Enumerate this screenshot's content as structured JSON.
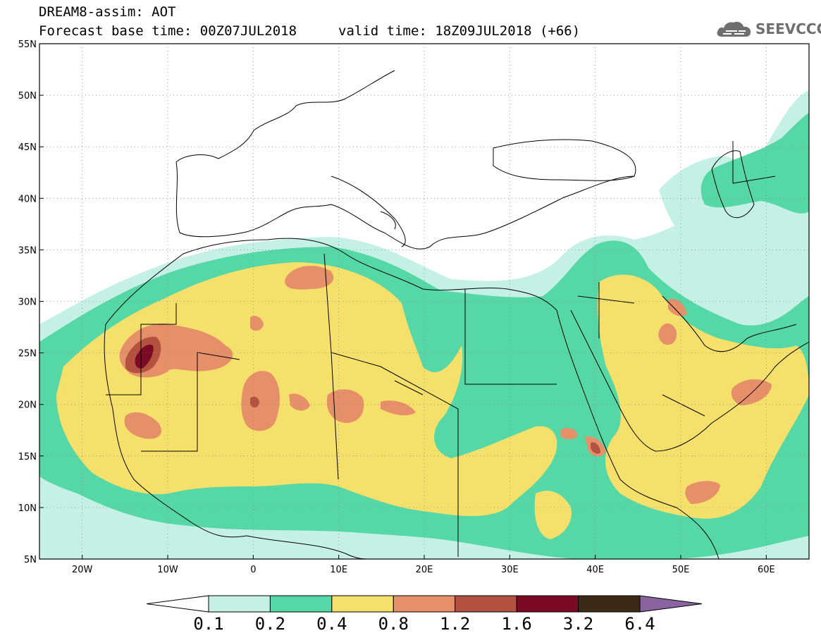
{
  "header": {
    "title": "DREAM8-assim: AOT",
    "base_time": "Forecast base time: 00Z07JUL2018",
    "valid_time": "valid time: 18Z09JUL2018 (+66)",
    "logo_text": "SEEVCCC",
    "logo_icon": "cloud-logo-icon"
  },
  "map": {
    "lon_range": [
      -25,
      65
    ],
    "lat_range": [
      5,
      55
    ],
    "lon_ticks": [
      {
        "value": -20,
        "label": "20W"
      },
      {
        "value": -10,
        "label": "10W"
      },
      {
        "value": 0,
        "label": "0"
      },
      {
        "value": 10,
        "label": "10E"
      },
      {
        "value": 20,
        "label": "20E"
      },
      {
        "value": 30,
        "label": "30E"
      },
      {
        "value": 40,
        "label": "40E"
      },
      {
        "value": 50,
        "label": "50E"
      },
      {
        "value": 60,
        "label": "60E"
      }
    ],
    "lat_ticks": [
      {
        "value": 55,
        "label": "55N"
      },
      {
        "value": 50,
        "label": "50N"
      },
      {
        "value": 45,
        "label": "45N"
      },
      {
        "value": 40,
        "label": "40N"
      },
      {
        "value": 35,
        "label": "35N"
      },
      {
        "value": 30,
        "label": "30N"
      },
      {
        "value": 25,
        "label": "25N"
      },
      {
        "value": 20,
        "label": "20N"
      },
      {
        "value": 15,
        "label": "15N"
      },
      {
        "value": 10,
        "label": "10N"
      },
      {
        "value": 5,
        "label": "5N"
      }
    ],
    "gridlines": "dotted"
  },
  "colorbar": {
    "thresholds": [
      "0.1",
      "0.2",
      "0.4",
      "0.8",
      "1.2",
      "1.6",
      "3.2",
      "6.4"
    ],
    "colors": [
      "#ffffff",
      "#c4f0e6",
      "#56d7a6",
      "#f6e06c",
      "#e6906a",
      "#b4523f",
      "#7c0a24",
      "#3c2a16",
      "#8a64a0"
    ]
  }
}
